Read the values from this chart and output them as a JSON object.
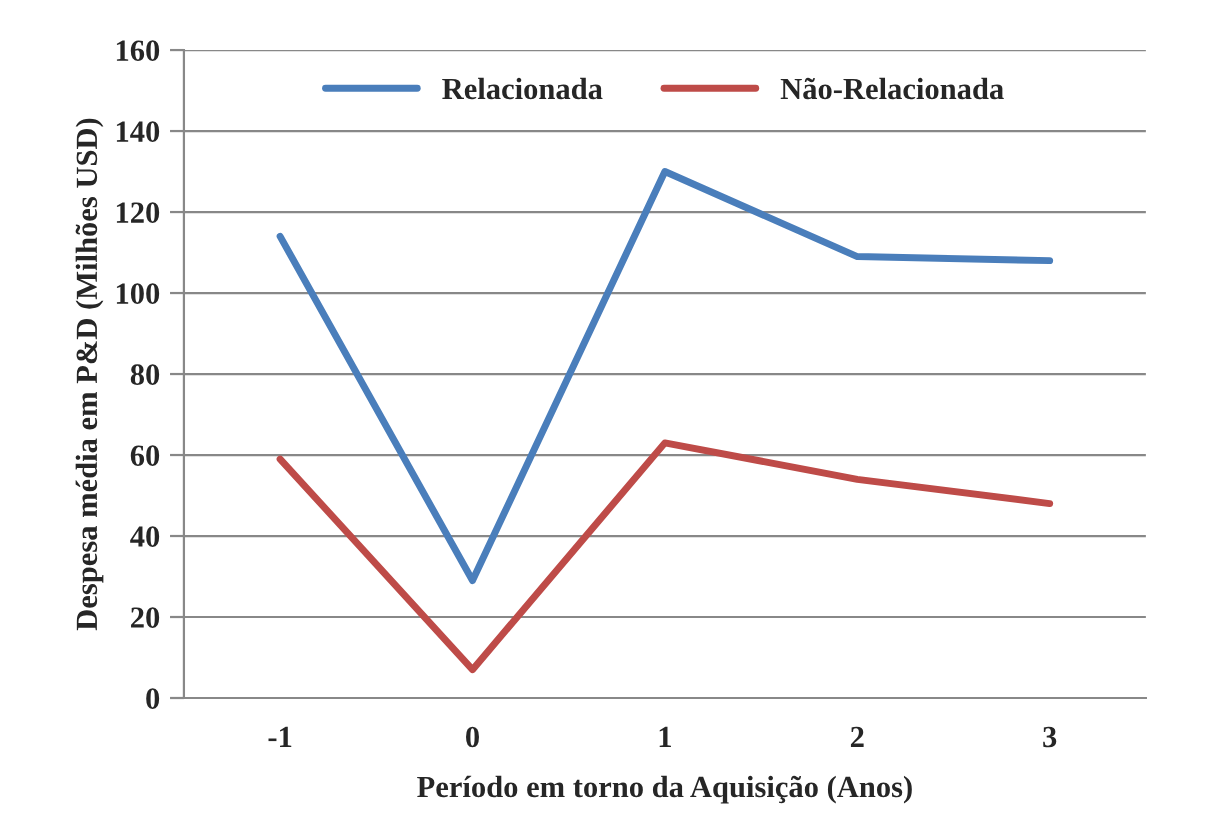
{
  "chart_data": {
    "type": "line",
    "xlabel": "Período em torno da Aquisição (Anos)",
    "ylabel": "Despesa média em P&D (Milhões USD)",
    "categories": [
      "-1",
      "0",
      "1",
      "2",
      "3"
    ],
    "series": [
      {
        "name": "Relacionada",
        "color": "#4a7ebb",
        "values": [
          114,
          29,
          130,
          109,
          108
        ]
      },
      {
        "name": "Não-Relacionada",
        "color": "#be4b48",
        "values": [
          59,
          7,
          63,
          54,
          48
        ]
      }
    ],
    "ylim": [
      0,
      160
    ],
    "yticks": [
      0,
      20,
      40,
      60,
      80,
      100,
      120,
      140,
      160
    ],
    "grid": "y",
    "legend": "top",
    "marker": "none",
    "line_style": "solid"
  }
}
